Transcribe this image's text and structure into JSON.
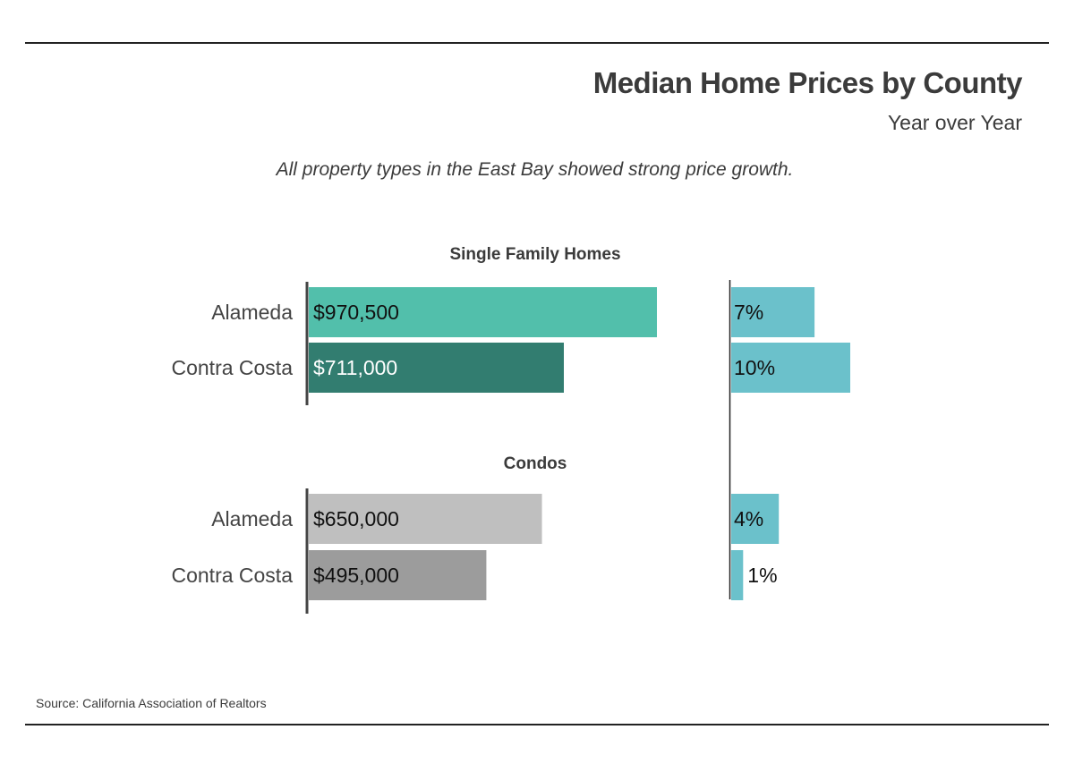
{
  "header": {
    "title": "Median Home Prices by County",
    "subtitle": "Year over Year",
    "note": "All property types in the East Bay showed strong price growth."
  },
  "footer": {
    "source": "Source:  California Association of Realtors"
  },
  "colors": {
    "sfh_alameda": "#52bfab",
    "sfh_contra_costa": "#327d70",
    "condo_alameda": "#bfbfbf",
    "condo_contra_costa": "#9c9c9c",
    "growth": "#6bc1cb",
    "axis": "#444444"
  },
  "chart_data": [
    {
      "type": "bar",
      "orientation": "horizontal",
      "title": "",
      "groups": [
        {
          "name": "Single Family Homes",
          "categories": [
            "Alameda",
            "Contra Costa"
          ],
          "values": [
            970500,
            711000
          ],
          "labels": [
            "$970,500",
            "$711,000"
          ]
        },
        {
          "name": "Condos",
          "categories": [
            "Alameda",
            "Contra Costa"
          ],
          "values": [
            650000,
            495000
          ],
          "labels": [
            "$650,000",
            "$495,000"
          ]
        }
      ],
      "xlim": [
        0,
        1000000
      ]
    },
    {
      "type": "bar",
      "orientation": "horizontal",
      "title": "",
      "groups": [
        {
          "name": "Single Family Homes",
          "categories": [
            "Alameda",
            "Contra Costa"
          ],
          "values": [
            7,
            10
          ],
          "labels": [
            "7%",
            "10%"
          ]
        },
        {
          "name": "Condos",
          "categories": [
            "Alameda",
            "Contra Costa"
          ],
          "values": [
            4,
            1
          ],
          "labels": [
            "4%",
            "1%"
          ]
        }
      ],
      "xlim": [
        0,
        12
      ]
    }
  ]
}
